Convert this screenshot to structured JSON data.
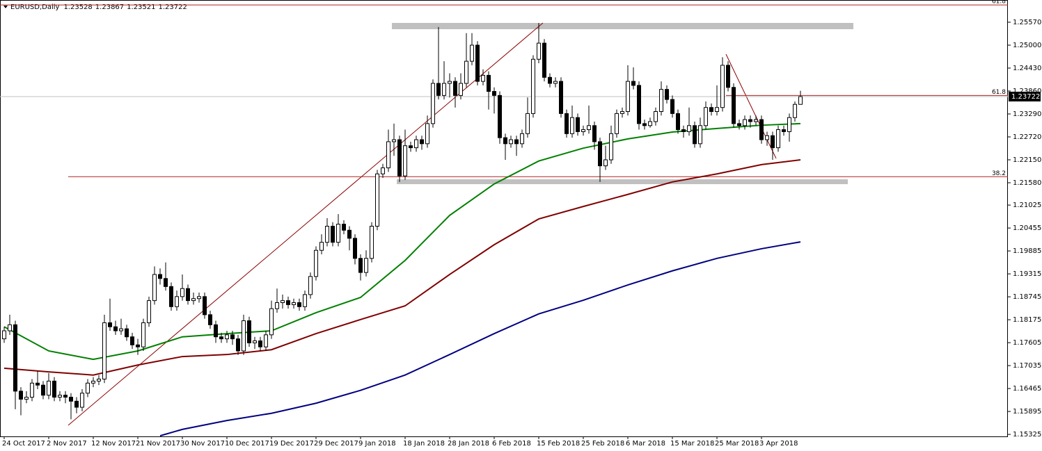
{
  "chart_data": {
    "type": "candlestick",
    "title": "EURUSD,Daily",
    "categories": [
      "24 Oct 2017",
      null,
      null,
      null,
      null,
      null,
      null,
      null,
      "2 Nov 2017",
      null,
      null,
      null,
      null,
      null,
      null,
      null,
      "12 Nov 2017",
      null,
      null,
      null,
      null,
      null,
      null,
      null,
      "21 Nov 2017",
      null,
      null,
      null,
      null,
      null,
      null,
      null,
      "30 Nov 2017",
      null,
      null,
      null,
      null,
      null,
      null,
      null,
      "10 Dec 2017",
      null,
      null,
      null,
      null,
      null,
      null,
      null,
      "19 Dec 2017",
      null,
      null,
      null,
      null,
      null,
      null,
      null,
      "29 Dec 2017",
      null,
      null,
      null,
      null,
      null,
      null,
      null,
      "9 Jan 2018",
      null,
      null,
      null,
      null,
      null,
      null,
      null,
      "18 Jan 2018",
      null,
      null,
      null,
      null,
      null,
      null,
      null,
      "28 Jan 2018",
      null,
      null,
      null,
      null,
      null,
      null,
      null,
      "6 Feb 2018",
      null,
      null,
      null,
      null,
      null,
      null,
      null,
      "15 Feb 2018",
      null,
      null,
      null,
      null,
      null,
      null,
      null,
      "25 Feb 2018",
      null,
      null,
      null,
      null,
      null,
      null,
      null,
      "6 Mar 2018",
      null,
      null,
      null,
      null,
      null,
      null,
      null,
      "15 Mar 2018",
      null,
      null,
      null,
      null,
      null,
      null,
      null,
      "25 Mar 2018",
      null,
      null,
      null,
      null,
      null,
      null,
      null,
      "3 Apr 2018",
      null,
      null,
      null,
      null,
      null,
      null,
      null
    ],
    "open": [
      1.177,
      1.179,
      1.1805,
      1.164,
      1.162,
      1.1625,
      1.166,
      1.1655,
      1.163,
      1.1665,
      1.1625,
      1.163,
      1.1625,
      1.1615,
      1.16,
      1.1635,
      1.166,
      1.1665,
      1.167,
      1.181,
      1.18,
      1.179,
      1.1795,
      1.1775,
      1.1755,
      1.175,
      1.181,
      1.1865,
      1.193,
      1.192,
      1.19,
      1.185,
      1.1875,
      1.1895,
      1.1865,
      1.187,
      1.1875,
      1.183,
      1.1805,
      1.1775,
      1.177,
      1.178,
      1.177,
      1.174,
      1.1815,
      1.176,
      1.1765,
      1.175,
      1.178,
      1.1845,
      1.186,
      1.1865,
      1.1855,
      1.186,
      1.185,
      1.188,
      1.1925,
      1.199,
      1.201,
      1.205,
      1.201,
      1.2055,
      1.204,
      1.202,
      1.197,
      1.1935,
      1.197,
      1.205,
      1.218,
      1.2195,
      1.226,
      1.2265,
      1.2175,
      1.225,
      1.2245,
      1.2265,
      1.2255,
      1.2305,
      1.2405,
      1.2375,
      1.2405,
      1.241,
      1.2375,
      1.2405,
      1.246,
      1.25,
      1.241,
      1.2425,
      1.2385,
      1.2375,
      1.227,
      1.2255,
      1.2265,
      1.2255,
      1.228,
      1.233,
      1.2465,
      1.2505,
      1.242,
      1.2405,
      1.241,
      1.233,
      1.228,
      1.232,
      1.2285,
      1.229,
      1.23,
      1.226,
      1.22,
      1.2215,
      1.228,
      1.233,
      1.2335,
      1.241,
      1.24,
      1.2305,
      1.23,
      1.231,
      1.2335,
      1.239,
      1.2365,
      1.233,
      1.229,
      1.2285,
      1.23,
      1.2255,
      1.23,
      1.2345,
      1.2335,
      1.2345,
      1.245,
      1.2395,
      1.2305,
      1.23,
      1.2315,
      1.231,
      1.2315,
      1.2265,
      1.2275,
      1.2245,
      1.229,
      1.2285,
      1.232,
      1.23528
    ],
    "high": [
      1.18,
      1.183,
      1.1815,
      1.165,
      1.164,
      1.167,
      1.169,
      1.1665,
      1.1685,
      1.1675,
      1.164,
      1.164,
      1.1635,
      1.1625,
      1.1645,
      1.167,
      1.1675,
      1.168,
      1.183,
      1.187,
      1.1815,
      1.182,
      1.1805,
      1.1785,
      1.177,
      1.182,
      1.1875,
      1.195,
      1.1945,
      1.196,
      1.191,
      1.189,
      1.193,
      1.1905,
      1.1885,
      1.1885,
      1.1885,
      1.184,
      1.1815,
      1.1785,
      1.179,
      1.179,
      1.178,
      1.183,
      1.1825,
      1.1775,
      1.1775,
      1.179,
      1.1865,
      1.1895,
      1.188,
      1.1875,
      1.187,
      1.187,
      1.189,
      1.1935,
      1.2,
      1.203,
      1.207,
      1.206,
      1.208,
      1.2065,
      1.205,
      1.203,
      1.198,
      1.199,
      1.206,
      1.219,
      1.2205,
      1.229,
      1.2305,
      1.2275,
      1.229,
      1.226,
      1.2275,
      1.2275,
      1.2325,
      1.2415,
      1.2545,
      1.246,
      1.243,
      1.242,
      1.243,
      1.253,
      1.253,
      1.251,
      1.244,
      1.2435,
      1.2395,
      1.2385,
      1.228,
      1.2275,
      1.2275,
      1.229,
      1.237,
      1.2475,
      1.2555,
      1.2515,
      1.243,
      1.242,
      1.242,
      1.234,
      1.235,
      1.233,
      1.23,
      1.235,
      1.231,
      1.227,
      1.225,
      1.23,
      1.234,
      1.2345,
      1.245,
      1.2445,
      1.241,
      1.2315,
      1.232,
      1.2345,
      1.241,
      1.24,
      1.2375,
      1.234,
      1.23,
      1.2345,
      1.231,
      1.232,
      1.236,
      1.2355,
      1.24,
      1.247,
      1.246,
      1.2405,
      1.2315,
      1.2325,
      1.2325,
      1.2325,
      1.2325,
      1.2285,
      1.2285,
      1.23,
      1.23,
      1.233,
      1.236,
      1.23867
    ],
    "low": [
      1.176,
      1.178,
      1.1595,
      1.158,
      1.161,
      1.1615,
      1.1645,
      1.162,
      1.162,
      1.1615,
      1.1615,
      1.161,
      1.157,
      1.1585,
      1.159,
      1.1625,
      1.165,
      1.1655,
      1.166,
      1.179,
      1.178,
      1.178,
      1.1765,
      1.1745,
      1.173,
      1.174,
      1.18,
      1.1855,
      1.1905,
      1.189,
      1.184,
      1.184,
      1.1865,
      1.1855,
      1.1855,
      1.186,
      1.182,
      1.1795,
      1.176,
      1.176,
      1.176,
      1.1755,
      1.173,
      1.173,
      1.175,
      1.1745,
      1.174,
      1.174,
      1.177,
      1.1835,
      1.1845,
      1.1845,
      1.1845,
      1.184,
      1.184,
      1.187,
      1.1915,
      1.198,
      1.2,
      1.2,
      1.2,
      1.203,
      1.199,
      1.1955,
      1.1915,
      1.1925,
      1.196,
      1.204,
      1.217,
      1.2185,
      1.2225,
      1.216,
      1.2165,
      1.2235,
      1.2235,
      1.224,
      1.2245,
      1.2295,
      1.2365,
      1.2365,
      1.237,
      1.2345,
      1.2365,
      1.2395,
      1.245,
      1.24,
      1.24,
      1.234,
      1.233,
      1.2255,
      1.2215,
      1.2245,
      1.2225,
      1.2245,
      1.227,
      1.232,
      1.2455,
      1.241,
      1.2395,
      1.2395,
      1.232,
      1.227,
      1.227,
      1.2275,
      1.2275,
      1.228,
      1.224,
      1.216,
      1.219,
      1.2205,
      1.227,
      1.232,
      1.2325,
      1.239,
      1.229,
      1.229,
      1.2295,
      1.23,
      1.2325,
      1.2355,
      1.232,
      1.228,
      1.227,
      1.2275,
      1.2245,
      1.2245,
      1.229,
      1.2325,
      1.2325,
      1.2335,
      1.2385,
      1.2295,
      1.229,
      1.229,
      1.2295,
      1.23,
      1.2255,
      1.225,
      1.2215,
      1.2235,
      1.2275,
      1.226,
      1.231,
      1.23521
    ],
    "close": [
      1.179,
      1.1805,
      1.164,
      1.162,
      1.1625,
      1.166,
      1.1655,
      1.163,
      1.1665,
      1.1625,
      1.163,
      1.1625,
      1.1615,
      1.16,
      1.1635,
      1.166,
      1.1665,
      1.167,
      1.181,
      1.18,
      1.179,
      1.1795,
      1.1775,
      1.1755,
      1.175,
      1.181,
      1.1865,
      1.193,
      1.192,
      1.19,
      1.185,
      1.1875,
      1.1895,
      1.1865,
      1.187,
      1.1875,
      1.183,
      1.1805,
      1.1775,
      1.177,
      1.178,
      1.177,
      1.174,
      1.1815,
      1.176,
      1.1765,
      1.175,
      1.178,
      1.1845,
      1.186,
      1.1865,
      1.1855,
      1.186,
      1.185,
      1.188,
      1.1925,
      1.199,
      1.201,
      1.205,
      1.201,
      1.2055,
      1.204,
      1.202,
      1.197,
      1.1935,
      1.197,
      1.205,
      1.218,
      1.2195,
      1.226,
      1.2265,
      1.2175,
      1.225,
      1.2245,
      1.2265,
      1.2255,
      1.2305,
      1.2405,
      1.2375,
      1.2405,
      1.241,
      1.2375,
      1.2405,
      1.246,
      1.25,
      1.241,
      1.2425,
      1.2385,
      1.2375,
      1.227,
      1.2255,
      1.2265,
      1.2255,
      1.228,
      1.233,
      1.2465,
      1.2505,
      1.242,
      1.2405,
      1.241,
      1.233,
      1.228,
      1.232,
      1.2285,
      1.229,
      1.23,
      1.226,
      1.22,
      1.2215,
      1.228,
      1.233,
      1.2335,
      1.241,
      1.24,
      1.2305,
      1.23,
      1.231,
      1.2335,
      1.239,
      1.2365,
      1.233,
      1.229,
      1.2285,
      1.23,
      1.2255,
      1.23,
      1.2345,
      1.2335,
      1.2345,
      1.245,
      1.2395,
      1.2305,
      1.23,
      1.2315,
      1.231,
      1.2315,
      1.2265,
      1.2275,
      1.2245,
      1.229,
      1.2285,
      1.232,
      1.23528,
      1.23722
    ],
    "up_color": "#ffffff",
    "down_color": "#000000",
    "lines": [
      {
        "color": "#008000",
        "x": [
          0,
          8,
          16,
          24,
          32,
          40,
          48,
          56,
          64,
          72,
          80,
          88,
          96,
          104,
          112,
          120,
          128,
          136,
          143
        ],
        "values": [
          1.18,
          1.174,
          1.1719,
          1.174,
          1.1775,
          1.1783,
          1.179,
          1.1835,
          1.1873,
          1.1965,
          1.2077,
          1.2155,
          1.2212,
          1.2244,
          1.2267,
          1.2284,
          1.2293,
          1.2301,
          1.2305
        ]
      },
      {
        "color": "#800000",
        "x": [
          0,
          8,
          16,
          24,
          32,
          40,
          48,
          56,
          64,
          72,
          80,
          88,
          96,
          104,
          112,
          120,
          128,
          136,
          143
        ],
        "values": [
          1.1697,
          1.1688,
          1.168,
          1.1705,
          1.1726,
          1.1731,
          1.1743,
          1.1783,
          1.1818,
          1.1852,
          1.193,
          1.2004,
          1.2068,
          1.2099,
          1.2129,
          1.216,
          1.218,
          1.2203,
          1.2215
        ]
      },
      {
        "color": "#000080",
        "x": [
          28,
          32,
          40,
          48,
          56,
          64,
          72,
          80,
          88,
          96,
          104,
          112,
          120,
          128,
          136,
          143
        ],
        "values": [
          1.1529,
          1.1545,
          1.1567,
          1.1585,
          1.161,
          1.1642,
          1.168,
          1.1731,
          1.1783,
          1.1832,
          1.1866,
          1.1904,
          1.1939,
          1.197,
          1.1994,
          1.2011
        ]
      }
    ],
    "fib_levels": [
      {
        "label": "61.8",
        "value": 1.26
      },
      {
        "label": "61.8",
        "value": 1.2375
      },
      {
        "label": "38.2",
        "value": 1.2173
      }
    ],
    "fib_color": "#b22222",
    "ylim": [
      1.15275,
      1.26036
    ],
    "yticks": [
      1.15325,
      1.15895,
      1.16465,
      1.17035,
      1.17605,
      1.18175,
      1.18745,
      1.19315,
      1.19885,
      1.20455,
      1.21025,
      {
        "value": 1.2158,
        "label": "1.21580"
      },
      {
        "value": 1.2215,
        "label": "1.22150"
      },
      {
        "value": 1.2272,
        "label": "1.22720"
      },
      {
        "value": 1.2329,
        "label": "1.23290"
      },
      {
        "value": 1.2386,
        "label": "1.23860"
      },
      {
        "value": 1.2443,
        "label": "1.24430"
      },
      {
        "value": 1.25,
        "label": "1.25000"
      },
      {
        "value": 1.2557,
        "label": "1.25570"
      }
    ],
    "grid": false
  }
}
